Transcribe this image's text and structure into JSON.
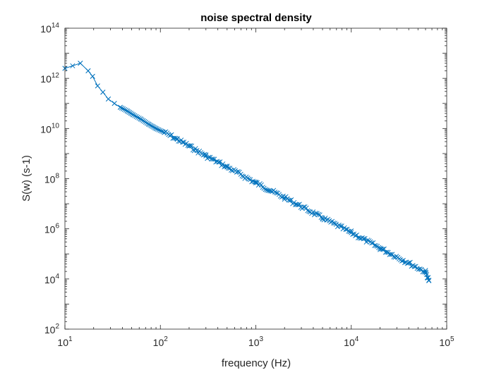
{
  "chart_data": {
    "type": "line",
    "title": "noise spectral density",
    "xlabel": "frequency (Hz)",
    "ylabel": "S(w) (s-1)",
    "xscale": "log",
    "yscale": "log",
    "xlim": [
      10,
      100000
    ],
    "ylim": [
      100,
      100000000000000
    ],
    "x_ticks": [
      {
        "base": "10",
        "exp": "1",
        "value": 10
      },
      {
        "base": "10",
        "exp": "2",
        "value": 100
      },
      {
        "base": "10",
        "exp": "3",
        "value": 1000
      },
      {
        "base": "10",
        "exp": "4",
        "value": 10000
      },
      {
        "base": "10",
        "exp": "5",
        "value": 100000
      }
    ],
    "y_ticks": [
      {
        "base": "10",
        "exp": "2",
        "value": 100
      },
      {
        "base": "10",
        "exp": "4",
        "value": 10000
      },
      {
        "base": "10",
        "exp": "6",
        "value": 1000000
      },
      {
        "base": "10",
        "exp": "8",
        "value": 100000000
      },
      {
        "base": "10",
        "exp": "10",
        "value": 10000000000
      },
      {
        "base": "10",
        "exp": "12",
        "value": 1000000000000
      },
      {
        "base": "10",
        "exp": "14",
        "value": 100000000000000
      }
    ],
    "grid": false,
    "legend": "none",
    "color": "#0072BD",
    "marker": "x",
    "series": [
      {
        "x": [
          10,
          14.5,
          17.5,
          19.5,
          22,
          25,
          28.5,
          33,
          38,
          45,
          52,
          62,
          75,
          90,
          110,
          150,
          200,
          300,
          500,
          1000,
          2000,
          5000,
          10000,
          20000,
          40000,
          60000,
          65000
        ],
        "y": [
          2500000000000,
          4000000000000,
          2000000000000,
          1200000000000,
          500000000000,
          280000000000,
          150000000000,
          100000000000,
          70000000000,
          50000000000,
          35000000000,
          24000000000,
          15000000000,
          10000000000,
          7000000000,
          3700000000,
          2000000000,
          800000000,
          290000000,
          68000000,
          17500000,
          2700000,
          700000,
          170000,
          43000,
          19000,
          9000
        ]
      }
    ]
  }
}
